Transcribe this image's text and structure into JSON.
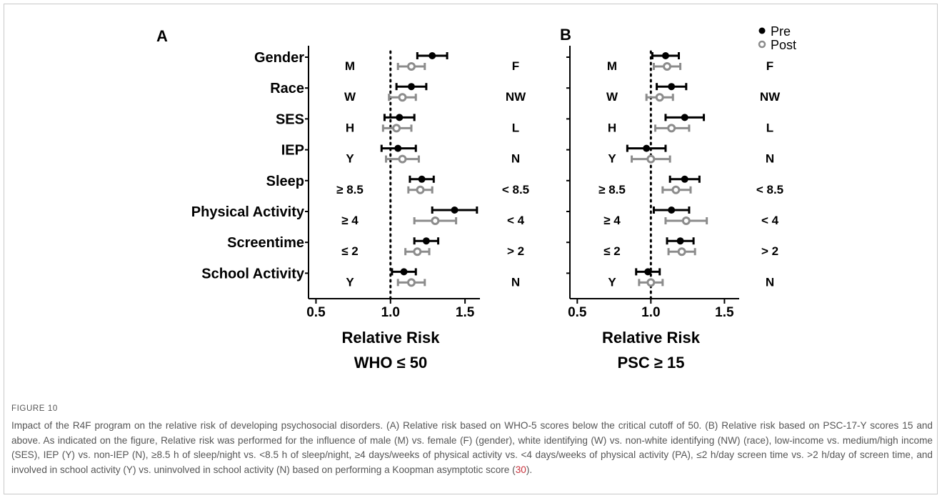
{
  "figure": {
    "label": "FIGURE 10",
    "caption_before_ref": "Impact of the R4F program on the relative risk of developing psychosocial disorders. (A) Relative risk based on WHO-5 scores below the critical cutoff of 50. (B) Relative risk based on PSC-17-Y scores 15 and above. As indicated on the figure, Relative risk was performed for the influence of male (M) vs. female (F) (gender), white identifying (W) vs. non-white identifying (NW) (race), low-income vs. medium/high income (SES), IEP (Y) vs. non-IEP (N), ≥8.5 h of sleep/night vs. <8.5 h of sleep/night, ≥4 days/weeks of physical activity vs. <4 days/weeks of physical activity (PA), ≤2 h/day screen time vs. >2 h/day of screen time, and involved in school activity (Y) vs. uninvolved in school activity (N) based on performing a Koopman asymptotic score (",
    "caption_ref": "30",
    "caption_after_ref": ")."
  },
  "colors": {
    "pre": "#000000",
    "post": "#8c8c8c",
    "caption": "#555555",
    "ref": "#c8323c"
  },
  "legend": {
    "pre": "Pre",
    "post": "Post"
  },
  "chart_data": {
    "type": "forest",
    "factors": [
      "Gender",
      "Race",
      "SES",
      "IEP",
      "Sleep",
      "Physical Activity",
      "Screentime",
      "School Activity"
    ],
    "series_names": [
      "Pre",
      "Post"
    ],
    "legend_position": "top-right",
    "panels": [
      {
        "panel_label": "A",
        "xlabel_line1": "Relative Risk",
        "xlabel_line2": "WHO ≤ 50",
        "xlim": [
          0.45,
          1.6
        ],
        "xticks": [
          "0.5",
          "1.0",
          "1.5"
        ],
        "reference_line": 1.0,
        "left_labels": [
          "M",
          "W",
          "H",
          "Y",
          "≥ 8.5",
          "≥ 4",
          "≤ 2",
          "Y"
        ],
        "right_labels": [
          "F",
          "NW",
          "L",
          "N",
          "< 8.5",
          "< 4",
          "> 2",
          "N"
        ],
        "pre": [
          {
            "rr": 1.28,
            "lo": 1.18,
            "hi": 1.38
          },
          {
            "rr": 1.14,
            "lo": 1.04,
            "hi": 1.24
          },
          {
            "rr": 1.06,
            "lo": 0.96,
            "hi": 1.16
          },
          {
            "rr": 1.05,
            "lo": 0.94,
            "hi": 1.17
          },
          {
            "rr": 1.21,
            "lo": 1.13,
            "hi": 1.29
          },
          {
            "rr": 1.43,
            "lo": 1.28,
            "hi": 1.58
          },
          {
            "rr": 1.24,
            "lo": 1.16,
            "hi": 1.32
          },
          {
            "rr": 1.09,
            "lo": 1.01,
            "hi": 1.17
          }
        ],
        "post": [
          {
            "rr": 1.14,
            "lo": 1.05,
            "hi": 1.23
          },
          {
            "rr": 1.08,
            "lo": 0.99,
            "hi": 1.17
          },
          {
            "rr": 1.04,
            "lo": 0.95,
            "hi": 1.14
          },
          {
            "rr": 1.08,
            "lo": 0.97,
            "hi": 1.19
          },
          {
            "rr": 1.2,
            "lo": 1.12,
            "hi": 1.28
          },
          {
            "rr": 1.3,
            "lo": 1.16,
            "hi": 1.44
          },
          {
            "rr": 1.18,
            "lo": 1.1,
            "hi": 1.26
          },
          {
            "rr": 1.14,
            "lo": 1.05,
            "hi": 1.23
          }
        ]
      },
      {
        "panel_label": "B",
        "xlabel_line1": "Relative Risk",
        "xlabel_line2": "PSC ≥ 15",
        "xlim": [
          0.45,
          1.6
        ],
        "xticks": [
          "0.5",
          "1.0",
          "1.5"
        ],
        "reference_line": 1.0,
        "left_labels": [
          "M",
          "W",
          "H",
          "Y",
          "≥ 8.5",
          "≥ 4",
          "≤ 2",
          "Y"
        ],
        "right_labels": [
          "F",
          "NW",
          "L",
          "N",
          "< 8.5",
          "< 4",
          "> 2",
          "N"
        ],
        "pre": [
          {
            "rr": 1.1,
            "lo": 1.01,
            "hi": 1.19
          },
          {
            "rr": 1.14,
            "lo": 1.04,
            "hi": 1.24
          },
          {
            "rr": 1.23,
            "lo": 1.1,
            "hi": 1.36
          },
          {
            "rr": 0.97,
            "lo": 0.84,
            "hi": 1.1
          },
          {
            "rr": 1.23,
            "lo": 1.13,
            "hi": 1.33
          },
          {
            "rr": 1.14,
            "lo": 1.02,
            "hi": 1.26
          },
          {
            "rr": 1.2,
            "lo": 1.11,
            "hi": 1.29
          },
          {
            "rr": 0.98,
            "lo": 0.9,
            "hi": 1.06
          }
        ],
        "post": [
          {
            "rr": 1.11,
            "lo": 1.02,
            "hi": 1.2
          },
          {
            "rr": 1.06,
            "lo": 0.97,
            "hi": 1.15
          },
          {
            "rr": 1.14,
            "lo": 1.03,
            "hi": 1.26
          },
          {
            "rr": 1.0,
            "lo": 0.87,
            "hi": 1.13
          },
          {
            "rr": 1.17,
            "lo": 1.08,
            "hi": 1.27
          },
          {
            "rr": 1.24,
            "lo": 1.1,
            "hi": 1.38
          },
          {
            "rr": 1.21,
            "lo": 1.12,
            "hi": 1.3
          },
          {
            "rr": 1.0,
            "lo": 0.92,
            "hi": 1.08
          }
        ]
      }
    ]
  }
}
